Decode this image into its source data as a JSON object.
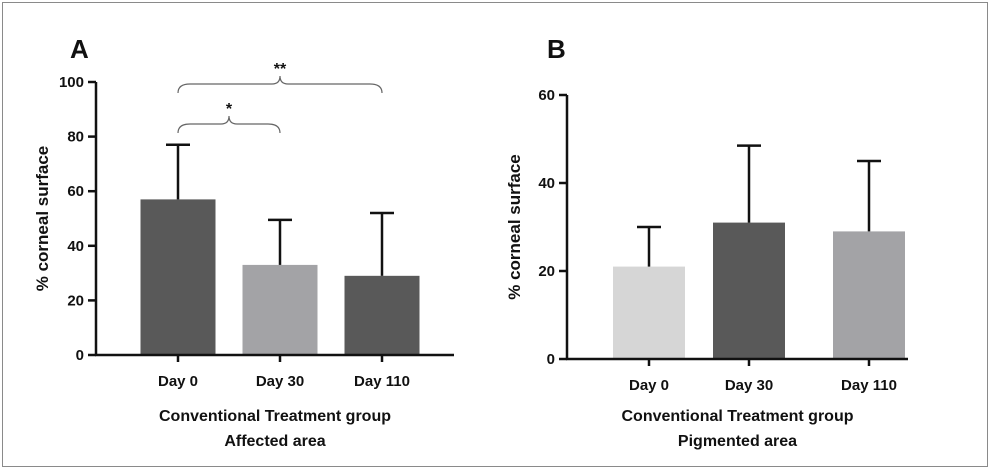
{
  "chart_data": [
    {
      "type": "bar",
      "panel": "A",
      "categories": [
        "Day 0",
        "Day 30",
        "Day 110"
      ],
      "values": [
        57,
        33,
        29
      ],
      "errors": [
        20,
        16.5,
        23
      ],
      "colors": [
        "#595959",
        "#a3a3a6",
        "#595959"
      ],
      "ylabel": "% corneal surface",
      "xlabel_lines": [
        "Conventional Treatment group",
        "Affected area"
      ],
      "ylim": [
        0,
        100
      ],
      "yticks": [
        0,
        20,
        40,
        60,
        80,
        100
      ],
      "annotations": [
        {
          "text": "*",
          "from": "Day 0",
          "to": "Day 30"
        },
        {
          "text": "**",
          "from": "Day 0",
          "to": "Day 110"
        }
      ]
    },
    {
      "type": "bar",
      "panel": "B",
      "categories": [
        "Day 0",
        "Day 30",
        "Day 110"
      ],
      "values": [
        21,
        31,
        29
      ],
      "errors": [
        9,
        17.5,
        16
      ],
      "colors": [
        "#d6d6d6",
        "#595959",
        "#a3a3a6"
      ],
      "ylabel": "% corneal surface",
      "xlabel_lines": [
        "Conventional Treatment group",
        "Pigmented area"
      ],
      "ylim": [
        0,
        60
      ],
      "yticks": [
        0,
        20,
        40,
        60
      ],
      "annotations": []
    }
  ]
}
